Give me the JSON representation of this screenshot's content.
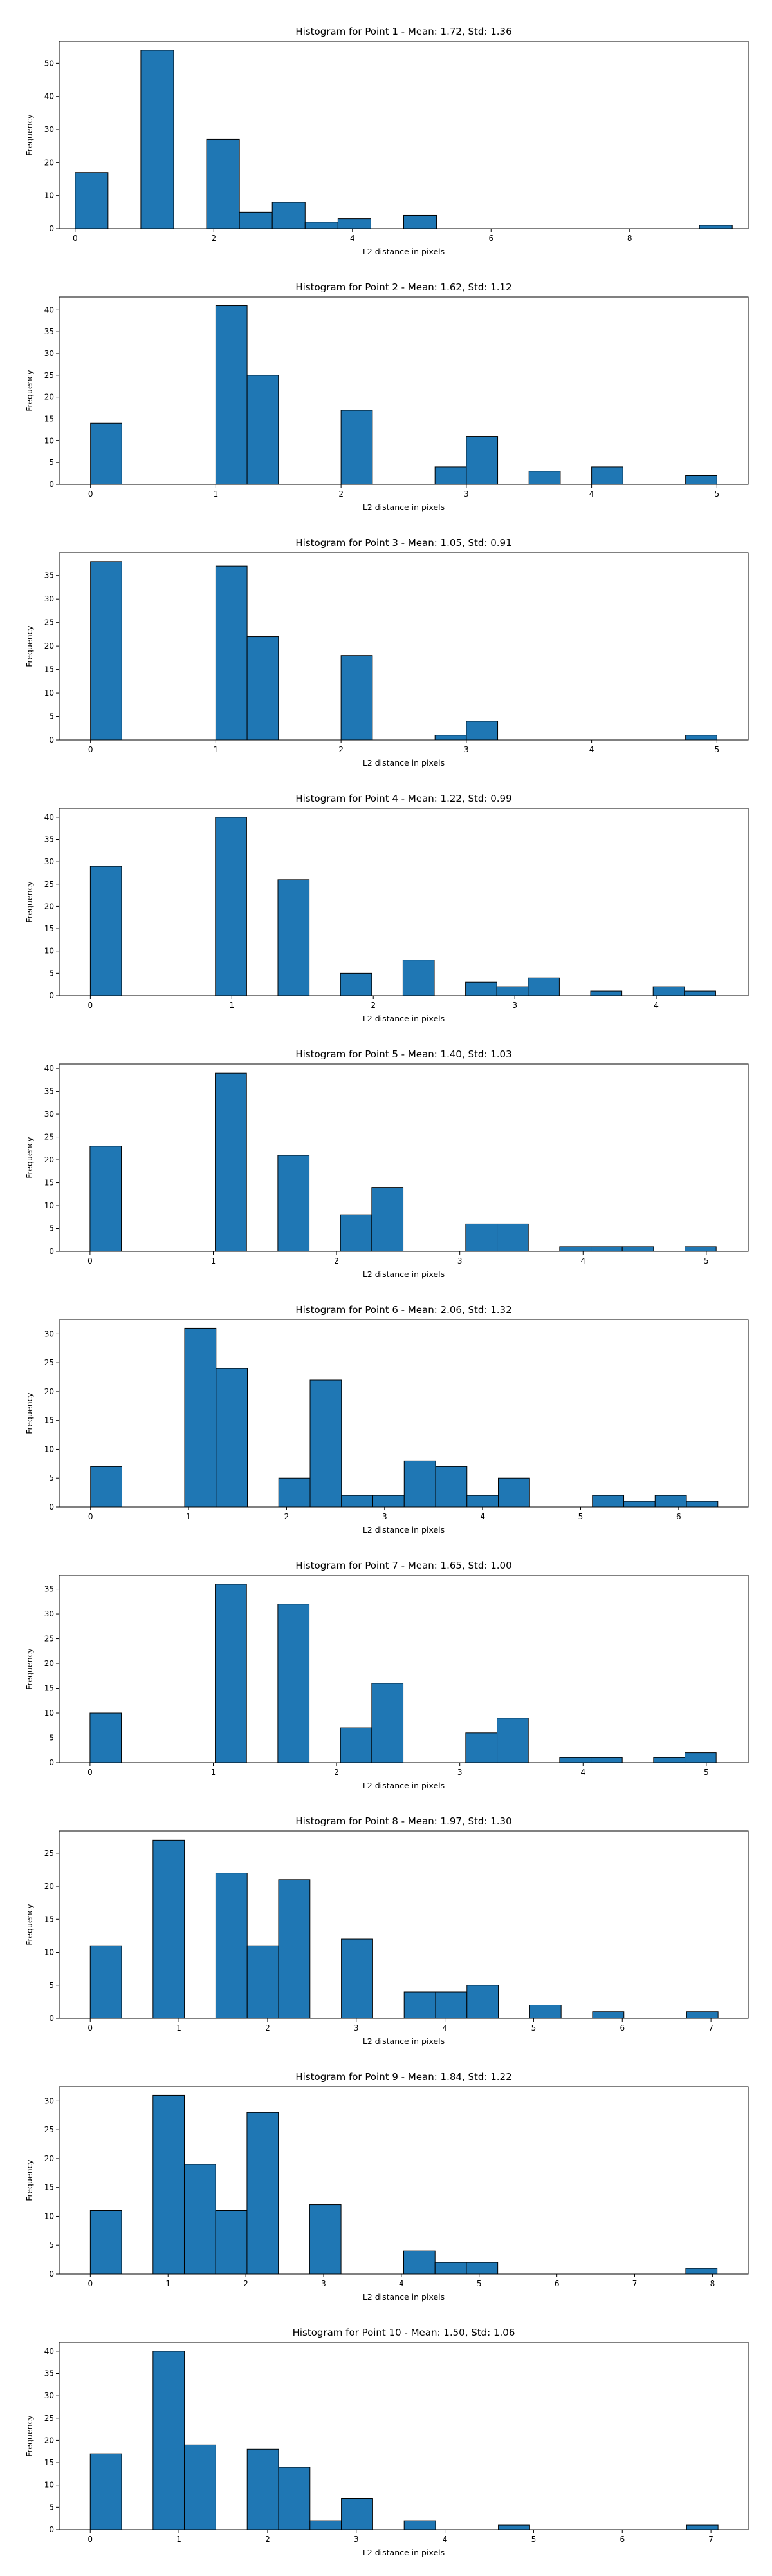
{
  "style": {
    "bar_color": "#1f77b4",
    "edge_color": "#000000"
  },
  "chart_data": [
    {
      "type": "bar",
      "title": "Histogram for Point 1 - Mean: 1.72, Std: 1.36",
      "xlabel": "L2 distance in pixels",
      "ylabel": "Frequency",
      "xlim": [
        -0.23,
        9.71
      ],
      "ylim": [
        0,
        56.7
      ],
      "xticks": [
        0,
        2,
        4,
        6,
        8
      ],
      "yticks": [
        0,
        10,
        20,
        30,
        40,
        50
      ],
      "bin_start": 0,
      "bin_width": 0.474,
      "values": [
        17,
        0,
        54,
        0,
        27,
        5,
        8,
        2,
        3,
        0,
        4,
        0,
        0,
        0,
        0,
        0,
        0,
        0,
        0,
        1
      ]
    },
    {
      "type": "bar",
      "title": "Histogram for Point 2 - Mean: 1.62, Std: 1.12",
      "xlabel": "L2 distance in pixels",
      "ylabel": "Frequency",
      "xlim": [
        -0.25,
        5.25
      ],
      "ylim": [
        0,
        43.0
      ],
      "xticks": [
        0,
        1,
        2,
        3,
        4,
        5
      ],
      "yticks": [
        0,
        5,
        10,
        15,
        20,
        25,
        30,
        35,
        40
      ],
      "bin_start": 0,
      "bin_width": 0.25,
      "values": [
        14,
        0,
        0,
        0,
        41,
        25,
        0,
        0,
        17,
        0,
        0,
        4,
        11,
        0,
        3,
        0,
        4,
        0,
        0,
        2
      ]
    },
    {
      "type": "bar",
      "title": "Histogram for Point 3 - Mean: 1.05, Std: 0.91",
      "xlabel": "L2 distance in pixels",
      "ylabel": "Frequency",
      "xlim": [
        -0.25,
        5.25
      ],
      "ylim": [
        0,
        39.9
      ],
      "xticks": [
        0,
        1,
        2,
        3,
        4,
        5
      ],
      "yticks": [
        0,
        5,
        10,
        15,
        20,
        25,
        30,
        35
      ],
      "bin_start": 0,
      "bin_width": 0.25,
      "values": [
        38,
        0,
        0,
        0,
        37,
        22,
        0,
        0,
        18,
        0,
        0,
        1,
        4,
        0,
        0,
        0,
        0,
        0,
        0,
        1
      ]
    },
    {
      "type": "bar",
      "title": "Histogram for Point 4 - Mean: 1.22, Std: 0.99",
      "xlabel": "L2 distance in pixels",
      "ylabel": "Frequency",
      "xlim": [
        -0.22,
        4.65
      ],
      "ylim": [
        0,
        42.0
      ],
      "xticks": [
        0,
        1,
        2,
        3,
        4
      ],
      "yticks": [
        0,
        5,
        10,
        15,
        20,
        25,
        30,
        35,
        40
      ],
      "bin_start": 0,
      "bin_width": 0.221,
      "values": [
        29,
        0,
        0,
        0,
        40,
        0,
        26,
        0,
        5,
        0,
        8,
        0,
        3,
        2,
        4,
        0,
        1,
        0,
        2,
        1
      ]
    },
    {
      "type": "bar",
      "title": "Histogram for Point 5 - Mean: 1.40, Std: 1.03",
      "xlabel": "L2 distance in pixels",
      "ylabel": "Frequency",
      "xlim": [
        -0.25,
        5.34
      ],
      "ylim": [
        0,
        41.0
      ],
      "xticks": [
        0,
        1,
        2,
        3,
        4,
        5
      ],
      "yticks": [
        0,
        5,
        10,
        15,
        20,
        25,
        30,
        35,
        40
      ],
      "bin_start": 0,
      "bin_width": 0.254,
      "values": [
        23,
        0,
        0,
        0,
        39,
        0,
        21,
        0,
        8,
        14,
        0,
        0,
        6,
        6,
        0,
        1,
        1,
        1,
        0,
        1
      ]
    },
    {
      "type": "bar",
      "title": "Histogram for Point 6 - Mean: 2.06, Std: 1.32",
      "xlabel": "L2 distance in pixels",
      "ylabel": "Frequency",
      "xlim": [
        -0.32,
        6.71
      ],
      "ylim": [
        0,
        32.5
      ],
      "xticks": [
        0,
        1,
        2,
        3,
        4,
        5,
        6
      ],
      "yticks": [
        0,
        5,
        10,
        15,
        20,
        25,
        30
      ],
      "bin_start": 0,
      "bin_width": 0.32,
      "values": [
        7,
        0,
        0,
        31,
        24,
        0,
        5,
        22,
        2,
        2,
        8,
        7,
        2,
        5,
        0,
        0,
        2,
        1,
        2,
        1
      ]
    },
    {
      "type": "bar",
      "title": "Histogram for Point 7 - Mean: 1.65, Std: 1.00",
      "xlabel": "L2 distance in pixels",
      "ylabel": "Frequency",
      "xlim": [
        -0.25,
        5.34
      ],
      "ylim": [
        0,
        37.8
      ],
      "xticks": [
        0,
        1,
        2,
        3,
        4,
        5
      ],
      "yticks": [
        0,
        5,
        10,
        15,
        20,
        25,
        30,
        35
      ],
      "bin_start": 0,
      "bin_width": 0.254,
      "values": [
        10,
        0,
        0,
        0,
        36,
        0,
        32,
        0,
        7,
        16,
        0,
        0,
        6,
        9,
        0,
        1,
        1,
        0,
        1,
        2
      ]
    },
    {
      "type": "bar",
      "title": "Histogram for Point 8 - Mean: 1.97, Std: 1.30",
      "xlabel": "L2 distance in pixels",
      "ylabel": "Frequency",
      "xlim": [
        -0.35,
        7.42
      ],
      "ylim": [
        0,
        28.4
      ],
      "xticks": [
        0,
        1,
        2,
        3,
        4,
        5,
        6,
        7
      ],
      "yticks": [
        0,
        5,
        10,
        15,
        20,
        25
      ],
      "bin_start": 0,
      "bin_width": 0.354,
      "values": [
        11,
        0,
        27,
        0,
        22,
        11,
        21,
        0,
        12,
        0,
        4,
        4,
        5,
        0,
        2,
        0,
        1,
        0,
        0,
        1
      ]
    },
    {
      "type": "bar",
      "title": "Histogram for Point 9 - Mean: 1.84, Std: 1.22",
      "xlabel": "L2 distance in pixels",
      "ylabel": "Frequency",
      "xlim": [
        -0.4,
        8.46
      ],
      "ylim": [
        0,
        32.5
      ],
      "xticks": [
        0,
        1,
        2,
        3,
        4,
        5,
        6,
        7,
        8
      ],
      "yticks": [
        0,
        5,
        10,
        15,
        20,
        25,
        30
      ],
      "bin_start": 0,
      "bin_width": 0.403,
      "values": [
        11,
        0,
        31,
        19,
        11,
        28,
        0,
        12,
        0,
        0,
        4,
        2,
        2,
        0,
        0,
        0,
        0,
        0,
        0,
        1
      ]
    },
    {
      "type": "bar",
      "title": "Histogram for Point 10 - Mean: 1.50, Std: 1.06",
      "xlabel": "L2 distance in pixels",
      "ylabel": "Frequency",
      "xlim": [
        -0.35,
        7.42
      ],
      "ylim": [
        0,
        42.0
      ],
      "xticks": [
        0,
        1,
        2,
        3,
        4,
        5,
        6,
        7
      ],
      "yticks": [
        0,
        5,
        10,
        15,
        20,
        25,
        30,
        35,
        40
      ],
      "bin_start": 0,
      "bin_width": 0.354,
      "values": [
        17,
        0,
        40,
        19,
        0,
        18,
        14,
        2,
        7,
        0,
        2,
        0,
        0,
        1,
        0,
        0,
        0,
        0,
        0,
        1
      ]
    }
  ]
}
